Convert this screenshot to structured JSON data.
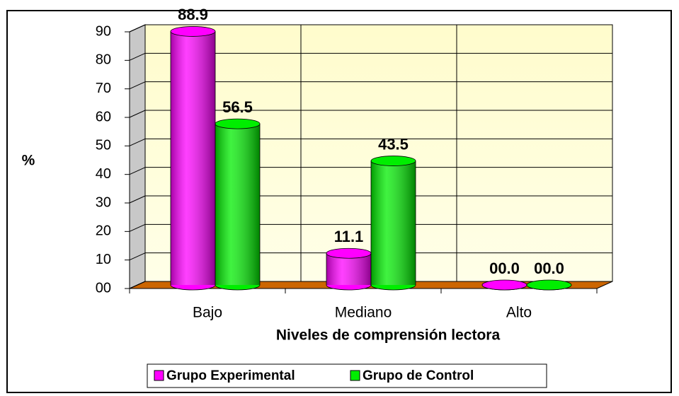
{
  "chart_data": {
    "type": "bar",
    "categories": [
      "Bajo",
      "Mediano",
      "Alto"
    ],
    "series": [
      {
        "name": "Grupo Experimental",
        "color": "#ff00ff",
        "values": [
          88.9,
          11.1,
          0
        ],
        "value_labels": [
          "88.9",
          "11.1",
          "00.0"
        ]
      },
      {
        "name": "Grupo de Control",
        "color": "#00ee00",
        "values": [
          56.5,
          43.5,
          0
        ],
        "value_labels": [
          "56.5",
          "43.5",
          "00.0"
        ]
      }
    ],
    "ylim": [
      0,
      90
    ],
    "yticks": [
      {
        "value": 0,
        "label": "00"
      },
      10,
      20,
      30,
      40,
      50,
      60,
      70,
      80,
      90
    ],
    "ylabel": "%",
    "xlabel": "Niveles de comprensión lectora",
    "grid": true,
    "legend": "bottom"
  }
}
